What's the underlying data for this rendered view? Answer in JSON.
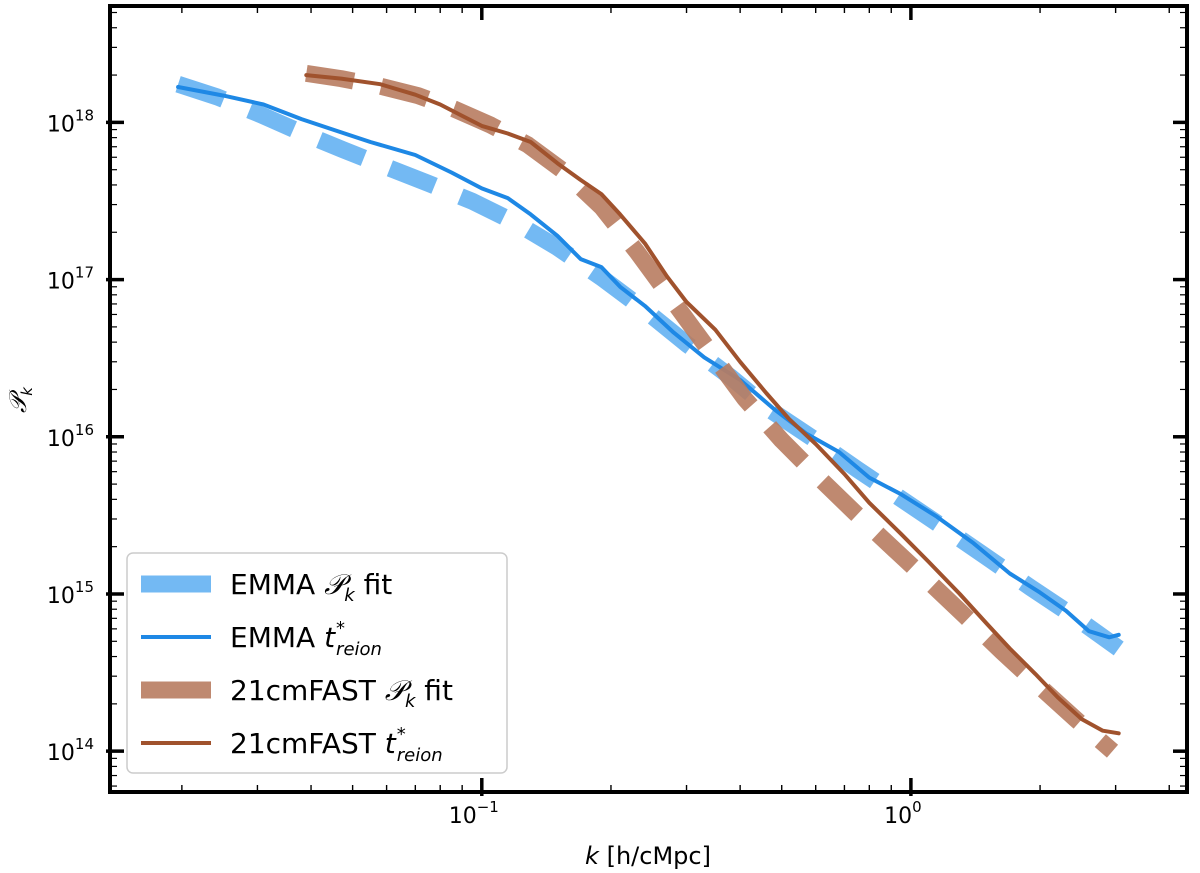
{
  "chart_data": {
    "type": "line",
    "xscale": "log",
    "yscale": "log",
    "xlim": [
      0.0136,
      4.4
    ],
    "ylim": [
      55000000000000.0,
      5.5e+18
    ],
    "xlabel": {
      "var": "k",
      "unit": " [h/cMpc]"
    },
    "ylabel": {
      "script": "𝒫",
      "sub": "k"
    },
    "xticks": [
      {
        "value": 0.1,
        "base": "10",
        "exp": "−1"
      },
      {
        "value": 1,
        "base": "10",
        "exp": "0"
      }
    ],
    "yticks": [
      {
        "value": 100000000000000.0,
        "base": "10",
        "exp": "14"
      },
      {
        "value": 1000000000000000.0,
        "base": "10",
        "exp": "15"
      },
      {
        "value": 1e+16,
        "base": "10",
        "exp": "16"
      },
      {
        "value": 1e+17,
        "base": "10",
        "exp": "17"
      },
      {
        "value": 1e+18,
        "base": "10",
        "exp": "18"
      }
    ],
    "legend": {
      "location": "lower-left",
      "entries": [
        {
          "series": 0,
          "prefix": "EMMA ",
          "math": "𝒫",
          "sub": "k",
          "sup": "",
          "suffix": " fit"
        },
        {
          "series": 1,
          "prefix": "EMMA ",
          "math": "t",
          "sub": "reion",
          "sup": "*",
          "suffix": ""
        },
        {
          "series": 2,
          "prefix": "21cmFAST ",
          "math": "𝒫",
          "sub": "k",
          "sup": "",
          "suffix": " fit"
        },
        {
          "series": 3,
          "prefix": "21cmFAST ",
          "math": "t",
          "sub": "reion",
          "sup": "*",
          "suffix": ""
        }
      ]
    },
    "series": [
      {
        "name": "EMMA Pk fit",
        "style": "dashed-thick",
        "color": "#64b1f2",
        "x": [
          0.0196,
          0.0242,
          0.0305,
          0.038,
          0.0475,
          0.06,
          0.075,
          0.095,
          0.12,
          0.15,
          0.19,
          0.24,
          0.3,
          0.38,
          0.47,
          0.6,
          0.75,
          0.94,
          1.18,
          1.5,
          1.9,
          2.4,
          3.05
        ],
        "y": [
          1.75e+18,
          1.45e+18,
          1.12e+18,
          8.6e+17,
          6.7e+17,
          5.2e+17,
          4.1e+17,
          3.15e+17,
          2.3e+17,
          1.6e+17,
          1.03e+17,
          6.4e+16,
          3.9e+16,
          2.4e+16,
          1.48e+16,
          9500000000000000.0,
          6200000000000000.0,
          4100000000000000.0,
          2700000000000000.0,
          1720000000000000.0,
          1100000000000000.0,
          720000000000000.0,
          450000000000000.0
        ]
      },
      {
        "name": "EMMA t*reion",
        "style": "solid",
        "color": "#1e88e5",
        "x": [
          0.0196,
          0.025,
          0.031,
          0.038,
          0.045,
          0.055,
          0.07,
          0.085,
          0.1,
          0.115,
          0.13,
          0.15,
          0.17,
          0.19,
          0.21,
          0.24,
          0.28,
          0.33,
          0.4,
          0.48,
          0.57,
          0.68,
          0.8,
          0.95,
          1.15,
          1.4,
          1.7,
          2.0,
          2.3,
          2.6,
          2.9,
          3.05
        ],
        "y": [
          1.68e+18,
          1.48e+18,
          1.3e+18,
          1.05e+18,
          9e+17,
          7.5e+17,
          6.2e+17,
          4.8e+17,
          3.8e+17,
          3.3e+17,
          2.6e+17,
          1.9e+17,
          1.35e+17,
          1.2e+17,
          9e+16,
          6.8e+16,
          4.6e+16,
          3.2e+16,
          2.3e+16,
          1.5e+16,
          1.05e+16,
          8000000000000000.0,
          5500000000000000.0,
          4300000000000000.0,
          3100000000000000.0,
          2100000000000000.0,
          1350000000000000.0,
          1020000000000000.0,
          780000000000000.0,
          580000000000000.0,
          530000000000000.0,
          550000000000000.0
        ]
      },
      {
        "name": "21cmFAST Pk fit",
        "style": "dashed-thick",
        "color": "#b87c61",
        "x": [
          0.039,
          0.047,
          0.058,
          0.071,
          0.086,
          0.105,
          0.128,
          0.155,
          0.19,
          0.23,
          0.28,
          0.34,
          0.41,
          0.5,
          0.61,
          0.74,
          0.9,
          1.1,
          1.34,
          1.63,
          1.99,
          2.42,
          2.95
        ],
        "y": [
          2.05e+18,
          1.9e+18,
          1.7e+18,
          1.48e+18,
          1.22e+18,
          9.6e+17,
          7.2e+17,
          4.9e+17,
          2.9e+17,
          1.5e+17,
          7.2e+16,
          3.5e+16,
          1.75e+16,
          9500000000000000.0,
          5500000000000000.0,
          3300000000000000.0,
          2000000000000000.0,
          1200000000000000.0,
          720000000000000.0,
          430000000000000.0,
          260000000000000.0,
          160000000000000.0,
          100000000000000.0
        ]
      },
      {
        "name": "21cmFAST t*reion",
        "style": "solid",
        "color": "#a0522d",
        "x": [
          0.039,
          0.047,
          0.058,
          0.07,
          0.08,
          0.09,
          0.1,
          0.115,
          0.13,
          0.15,
          0.17,
          0.19,
          0.21,
          0.24,
          0.27,
          0.3,
          0.35,
          0.4,
          0.46,
          0.52,
          0.6,
          0.7,
          0.8,
          0.95,
          1.1,
          1.3,
          1.5,
          1.7,
          1.95,
          2.2,
          2.5,
          2.8,
          3.05
        ],
        "y": [
          2e+18,
          1.9e+18,
          1.75e+18,
          1.5e+18,
          1.3e+18,
          1.1e+18,
          9.5e+17,
          8.5e+17,
          7.5e+17,
          5.5e+17,
          4.3e+17,
          3.5e+17,
          2.6e+17,
          1.7e+17,
          1.05e+17,
          7.2e+16,
          4.8e+16,
          3e+16,
          1.9e+16,
          1.3e+16,
          9000000000000000.0,
          5800000000000000.0,
          3800000000000000.0,
          2400000000000000.0,
          1600000000000000.0,
          1000000000000000.0,
          650000000000000.0,
          450000000000000.0,
          310000000000000.0,
          220000000000000.0,
          160000000000000.0,
          135000000000000.0,
          130000000000000.0
        ]
      }
    ]
  }
}
